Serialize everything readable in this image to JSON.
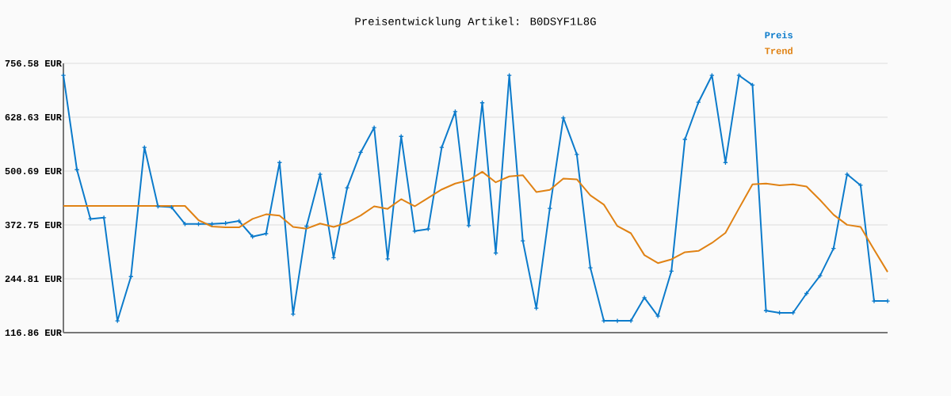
{
  "chart_data": {
    "type": "line",
    "title": "Preisentwicklung Artikel: B0DSYF1L8G",
    "categories": [
      null,
      null,
      null,
      null,
      null,
      null,
      null,
      null,
      null,
      null,
      null,
      null,
      null,
      null,
      null,
      null,
      null,
      null,
      null,
      null,
      null,
      null,
      null,
      null,
      null,
      null,
      null,
      null,
      null,
      null,
      null,
      null,
      null,
      null,
      null,
      null,
      null,
      null,
      null,
      null,
      null,
      null,
      null,
      null,
      null,
      null,
      null,
      null,
      null,
      null,
      null,
      null,
      null,
      null,
      null,
      null,
      null,
      null,
      null,
      null,
      null,
      null
    ],
    "series": [
      {
        "name": "Preis",
        "color": "#0c7bcb",
        "marker": "cross",
        "values": [
          728,
          504,
          387,
          390,
          145,
          250,
          557,
          417,
          415,
          375,
          375,
          375,
          377,
          382,
          345,
          352,
          521,
          161,
          370,
          493,
          295,
          461,
          545,
          604,
          292,
          583,
          358,
          363,
          557,
          642,
          371,
          663,
          306,
          728,
          335,
          175,
          412,
          627,
          540,
          271,
          145,
          145,
          145,
          200,
          156,
          263,
          576,
          664,
          728,
          521,
          728,
          705,
          169,
          164,
          164,
          210,
          252,
          317,
          493,
          467,
          192,
          192
        ]
      },
      {
        "name": "Trend",
        "color": "#e08214",
        "marker": "none",
        "values": [
          418,
          418,
          418,
          418,
          418,
          418,
          418,
          418,
          418,
          418,
          384,
          369,
          367,
          367,
          387,
          398,
          395,
          368,
          364,
          376,
          368,
          378,
          395,
          417,
          411,
          434,
          417,
          437,
          457,
          471,
          479,
          499,
          474,
          488,
          491,
          451,
          456,
          483,
          481,
          443,
          421,
          370,
          353,
          301,
          282,
          291,
          308,
          311,
          330,
          354,
          412,
          469,
          471,
          467,
          469,
          464,
          432,
          397,
          373,
          368,
          314,
          261
        ]
      }
    ],
    "ylim": [
      116.86,
      756.58
    ],
    "yticks": [
      {
        "value": 116.86,
        "label": "116.86 EUR"
      },
      {
        "value": 244.81,
        "label": "244.81 EUR"
      },
      {
        "value": 372.75,
        "label": "372.75 EUR"
      },
      {
        "value": 500.69,
        "label": "500.69 EUR"
      },
      {
        "value": 628.63,
        "label": "628.63 EUR"
      },
      {
        "value": 756.58,
        "label": "756.58 EUR"
      }
    ],
    "grid": "y",
    "legend": "top right"
  }
}
